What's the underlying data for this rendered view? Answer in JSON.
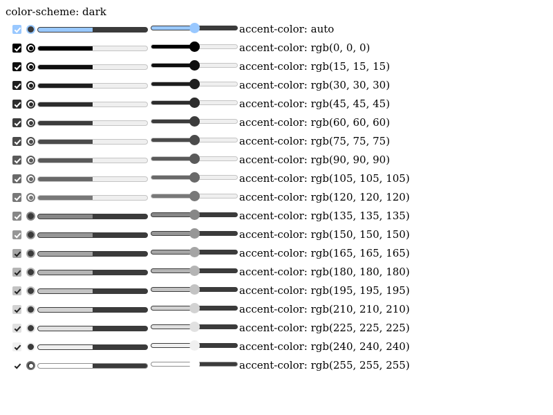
{
  "page": {
    "title": "color-scheme: dark"
  },
  "rows": [
    {
      "label": "accent-color: auto",
      "color": "#99c8ff",
      "dark_track": true,
      "checkbox_checked": true,
      "radio_checked": true,
      "progress_value": 0.5,
      "slider_value": 0.5
    },
    {
      "label": "accent-color: rgb(0, 0, 0)",
      "color": "#000000",
      "dark_track": false,
      "checkbox_checked": true,
      "radio_checked": true,
      "progress_value": 0.5,
      "slider_value": 0.5
    },
    {
      "label": "accent-color: rgb(15, 15, 15)",
      "color": "#0f0f0f",
      "dark_track": false,
      "checkbox_checked": true,
      "radio_checked": true,
      "progress_value": 0.5,
      "slider_value": 0.5
    },
    {
      "label": "accent-color: rgb(30, 30, 30)",
      "color": "#1e1e1e",
      "dark_track": false,
      "checkbox_checked": true,
      "radio_checked": true,
      "progress_value": 0.5,
      "slider_value": 0.5
    },
    {
      "label": "accent-color: rgb(45, 45, 45)",
      "color": "#2d2d2d",
      "dark_track": false,
      "checkbox_checked": true,
      "radio_checked": true,
      "progress_value": 0.5,
      "slider_value": 0.5
    },
    {
      "label": "accent-color: rgb(60, 60, 60)",
      "color": "#3c3c3c",
      "dark_track": false,
      "checkbox_checked": true,
      "radio_checked": true,
      "progress_value": 0.5,
      "slider_value": 0.5
    },
    {
      "label": "accent-color: rgb(75, 75, 75)",
      "color": "#4b4b4b",
      "dark_track": false,
      "checkbox_checked": true,
      "radio_checked": true,
      "progress_value": 0.5,
      "slider_value": 0.5
    },
    {
      "label": "accent-color: rgb(90, 90, 90)",
      "color": "#5a5a5a",
      "dark_track": false,
      "checkbox_checked": true,
      "radio_checked": true,
      "progress_value": 0.5,
      "slider_value": 0.5
    },
    {
      "label": "accent-color: rgb(105, 105, 105)",
      "color": "#696969",
      "dark_track": false,
      "checkbox_checked": true,
      "radio_checked": true,
      "progress_value": 0.5,
      "slider_value": 0.5
    },
    {
      "label": "accent-color: rgb(120, 120, 120)",
      "color": "#787878",
      "dark_track": false,
      "checkbox_checked": true,
      "radio_checked": true,
      "progress_value": 0.5,
      "slider_value": 0.5
    },
    {
      "label": "accent-color: rgb(135, 135, 135)",
      "color": "#878787",
      "dark_track": true,
      "checkbox_checked": true,
      "radio_checked": true,
      "progress_value": 0.5,
      "slider_value": 0.5
    },
    {
      "label": "accent-color: rgb(150, 150, 150)",
      "color": "#969696",
      "dark_track": true,
      "checkbox_checked": true,
      "radio_checked": true,
      "progress_value": 0.5,
      "slider_value": 0.5
    },
    {
      "label": "accent-color: rgb(165, 165, 165)",
      "color": "#a5a5a5",
      "dark_track": true,
      "checkbox_checked": true,
      "radio_checked": true,
      "progress_value": 0.5,
      "slider_value": 0.5
    },
    {
      "label": "accent-color: rgb(180, 180, 180)",
      "color": "#b4b4b4",
      "dark_track": true,
      "checkbox_checked": true,
      "radio_checked": true,
      "progress_value": 0.5,
      "slider_value": 0.5
    },
    {
      "label": "accent-color: rgb(195, 195, 195)",
      "color": "#c3c3c3",
      "dark_track": true,
      "checkbox_checked": true,
      "radio_checked": true,
      "progress_value": 0.5,
      "slider_value": 0.5
    },
    {
      "label": "accent-color: rgb(210, 210, 210)",
      "color": "#d2d2d2",
      "dark_track": true,
      "checkbox_checked": true,
      "radio_checked": true,
      "progress_value": 0.5,
      "slider_value": 0.5
    },
    {
      "label": "accent-color: rgb(225, 225, 225)",
      "color": "#e1e1e1",
      "dark_track": true,
      "checkbox_checked": true,
      "radio_checked": true,
      "progress_value": 0.5,
      "slider_value": 0.5
    },
    {
      "label": "accent-color: rgb(240, 240, 240)",
      "color": "#f0f0f0",
      "dark_track": true,
      "checkbox_checked": true,
      "radio_checked": true,
      "progress_value": 0.5,
      "slider_value": 0.5
    },
    {
      "label": "accent-color: rgb(255, 255, 255)",
      "color": "#ffffff",
      "dark_track": true,
      "checkbox_checked": true,
      "radio_checked": true,
      "progress_value": 0.5,
      "slider_value": 0.5
    }
  ]
}
